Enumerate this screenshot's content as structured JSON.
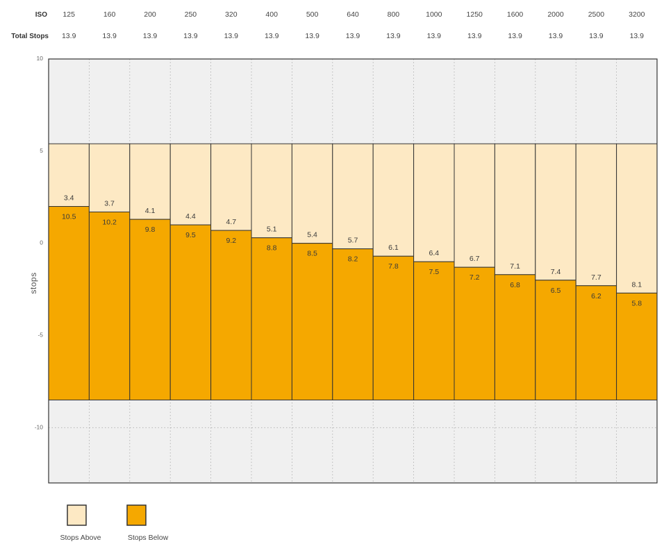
{
  "chart_data": {
    "type": "bar",
    "header_labels": {
      "iso": "ISO",
      "total": "Total Stops"
    },
    "categories": [
      "125",
      "160",
      "200",
      "250",
      "320",
      "400",
      "500",
      "640",
      "800",
      "1000",
      "1250",
      "1600",
      "2000",
      "2500",
      "3200"
    ],
    "total_stops": [
      "13.9",
      "13.9",
      "13.9",
      "13.9",
      "13.9",
      "13.9",
      "13.9",
      "13.9",
      "13.9",
      "13.9",
      "13.9",
      "13.9",
      "13.9",
      "13.9",
      "13.9"
    ],
    "series": [
      {
        "name": "Stops Above",
        "values": [
          3.4,
          3.7,
          4.1,
          4.4,
          4.7,
          5.1,
          5.4,
          5.7,
          6.1,
          6.4,
          6.7,
          7.1,
          7.4,
          7.7,
          8.1
        ],
        "color": "#fde9c4"
      },
      {
        "name": "Stops Below",
        "values": [
          10.5,
          10.2,
          9.8,
          9.5,
          9.2,
          8.8,
          8.5,
          8.2,
          7.8,
          7.5,
          7.2,
          6.8,
          6.5,
          6.2,
          5.8
        ],
        "color": "#f5a800"
      }
    ],
    "ylabel": "stops",
    "ylim": [
      -13,
      10
    ],
    "yticks": [
      10,
      5,
      0,
      -5,
      -10
    ],
    "grid": true,
    "legend": "bottom-left"
  }
}
